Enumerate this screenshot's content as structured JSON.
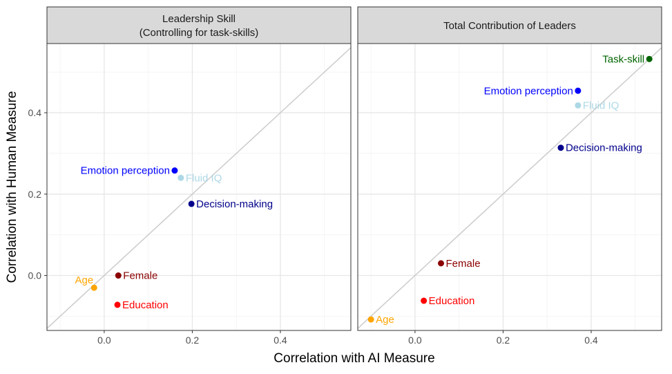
{
  "chart_data": {
    "type": "scatter",
    "xlabel": "Correlation with AI Measure",
    "ylabel": "Correlation with Human Measure",
    "xlim": [
      -0.13,
      0.56
    ],
    "ylim": [
      -0.135,
      0.57
    ],
    "x_ticks": [
      0.0,
      0.2,
      0.4
    ],
    "y_ticks": [
      0.0,
      0.2,
      0.4
    ],
    "x_tick_labels": [
      "0.0",
      "0.2",
      "0.4"
    ],
    "y_tick_labels": [
      "0.0",
      "0.2",
      "0.4"
    ],
    "grid": true,
    "reference_line": "y = x",
    "panels": [
      {
        "title_line1": "Leadership Skill",
        "title_line2": "(Controlling for task-skills)",
        "points": [
          {
            "label": "Emotion perception",
            "x": 0.16,
            "y": 0.258,
            "color": "#0000ff",
            "label_pos": "left"
          },
          {
            "label": "Fluid IQ",
            "x": 0.174,
            "y": 0.24,
            "color": "#add8e6",
            "label_pos": "right"
          },
          {
            "label": "Decision-making",
            "x": 0.198,
            "y": 0.176,
            "color": "#00008b",
            "label_pos": "right"
          },
          {
            "label": "Female",
            "x": 0.032,
            "y": 0.0,
            "color": "#8b0000",
            "label_pos": "right"
          },
          {
            "label": "Age",
            "x": -0.023,
            "y": -0.03,
            "color": "#ffa500",
            "label_pos": "upper-left"
          },
          {
            "label": "Education",
            "x": 0.03,
            "y": -0.072,
            "color": "#ff0000",
            "label_pos": "right"
          }
        ]
      },
      {
        "title_line1": "Total Contribution of Leaders",
        "title_line2": "",
        "points": [
          {
            "label": "Task-skill",
            "x": 0.532,
            "y": 0.532,
            "color": "#006400",
            "label_pos": "left"
          },
          {
            "label": "Emotion perception",
            "x": 0.37,
            "y": 0.454,
            "color": "#0000ff",
            "label_pos": "left"
          },
          {
            "label": "Fluid IQ",
            "x": 0.37,
            "y": 0.418,
            "color": "#add8e6",
            "label_pos": "right"
          },
          {
            "label": "Decision-making",
            "x": 0.331,
            "y": 0.314,
            "color": "#00008b",
            "label_pos": "right"
          },
          {
            "label": "Female",
            "x": 0.059,
            "y": 0.03,
            "color": "#8b0000",
            "label_pos": "right"
          },
          {
            "label": "Education",
            "x": 0.02,
            "y": -0.062,
            "color": "#ff0000",
            "label_pos": "right"
          },
          {
            "label": "Age",
            "x": -0.1,
            "y": -0.108,
            "color": "#ffa500",
            "label_pos": "right"
          }
        ]
      }
    ]
  }
}
